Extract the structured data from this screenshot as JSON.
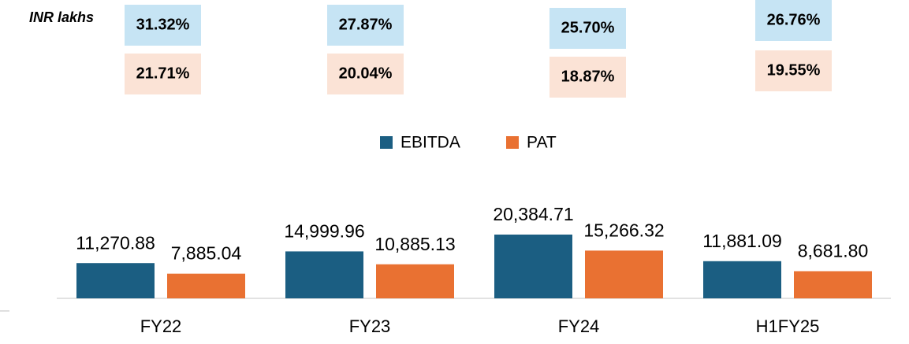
{
  "chart_data": {
    "type": "bar",
    "unit_note": "INR lakhs",
    "margin_rows": [
      {
        "color": "#c6e4f4",
        "labels": [
          "31.32%",
          "27.87%",
          "25.70%",
          "26.76%"
        ]
      },
      {
        "color": "#fbe3d6",
        "labels": [
          "21.71%",
          "20.04%",
          "18.87%",
          "19.55%"
        ]
      }
    ],
    "categories": [
      "FY22",
      "FY23",
      "FY24",
      "H1FY25"
    ],
    "series": [
      {
        "name": "EBITDA",
        "color": "#1b5e82",
        "values": [
          11270.88,
          14999.96,
          20384.71,
          11881.09
        ],
        "value_labels": [
          "11,270.88",
          "14,999.96",
          "20,384.71",
          "11,881.09"
        ]
      },
      {
        "name": "PAT",
        "color": "#e97132",
        "values": [
          7885.04,
          10885.13,
          15266.32,
          8681.8
        ],
        "value_labels": [
          "7,885.04",
          "10,885.13",
          "15,266.32",
          "8,681.80"
        ]
      }
    ]
  }
}
